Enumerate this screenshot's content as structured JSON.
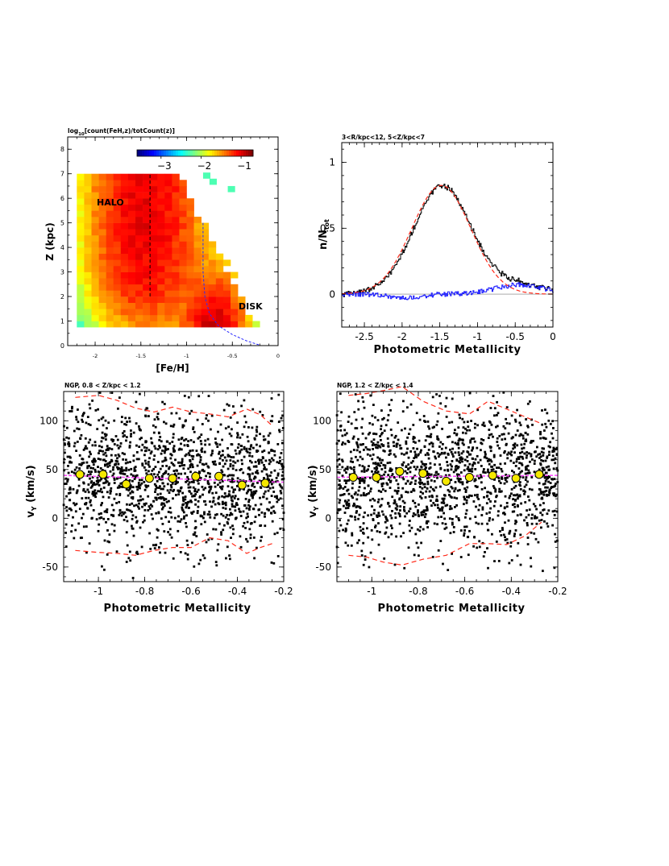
{
  "chart_data": [
    {
      "id": "heatmap",
      "type": "heatmap",
      "title": "log10[count(FeH,z)/totCount(z)]",
      "title_parts": {
        "pre": "log",
        "sub": "10",
        "post": "[count(FeH,z)/totCount(z)]"
      },
      "xlabel": "[Fe/H]",
      "ylabel": "Z (kpc)",
      "xlim": [
        -2.3,
        0
      ],
      "ylim": [
        0,
        8.5
      ],
      "xticks": [
        -2,
        -1.5,
        -1,
        -0.5,
        0
      ],
      "xtick_labels": [
        "-2",
        "-1.5",
        "-1",
        "-0.5",
        "0"
      ],
      "yticks": [
        0,
        1,
        2,
        3,
        4,
        5,
        6,
        7,
        8
      ],
      "ytick_labels": [
        "0",
        "1",
        "2",
        "3",
        "4",
        "5",
        "6",
        "7",
        "8"
      ],
      "colorbar": {
        "range": [
          -3.6,
          -0.7
        ],
        "ticks": [
          -3,
          -2,
          -1
        ],
        "tick_labels": [
          "−3",
          "−2",
          "−1"
        ]
      },
      "annotations": [
        {
          "text": "HALO",
          "x": -2.0,
          "y": 6.0
        },
        {
          "text": "DISK",
          "x": -0.35,
          "y": 1.5
        }
      ],
      "halo_line": {
        "x": -1.4,
        "y": [
          2.0,
          7.0
        ]
      },
      "disk_curve": {
        "x": [
          -0.82,
          -0.82,
          -0.8,
          -0.75,
          -0.65,
          -0.5,
          -0.35,
          -0.2
        ],
        "y": [
          5.0,
          3.0,
          2.0,
          1.3,
          0.8,
          0.45,
          0.2,
          0.02
        ]
      }
    },
    {
      "id": "histogram",
      "type": "line",
      "title": "3<R/kpc<12, 5<Z/kpc<7",
      "xlabel": "Photometric Metallicity",
      "ylabel": "n/N",
      "ylabel_sub": "tot",
      "xlim": [
        -2.8,
        0
      ],
      "ylim": [
        -0.25,
        1.15
      ],
      "xticks": [
        -2.5,
        -2,
        -1.5,
        -1,
        -0.5,
        0
      ],
      "xtick_labels": [
        "-2.5",
        "-2",
        "-1.5",
        "-1",
        "-0.5",
        "0"
      ],
      "yticks": [
        0,
        0.5,
        1
      ],
      "ytick_labels": [
        "0",
        "0.5",
        "1"
      ],
      "series": [
        {
          "name": "data",
          "color": "#000000",
          "model": "two-gaussian",
          "peak_x": -1.48,
          "peak_y": 0.84
        },
        {
          "name": "halo fit",
          "color": "#ff2a1a",
          "dash": true,
          "mu": -1.48,
          "sigma": 0.39,
          "amp": 0.825
        },
        {
          "name": "residual",
          "color": "#1a1aff",
          "mu": -0.45,
          "sigma": 0.32,
          "amp": 0.07
        }
      ]
    },
    {
      "id": "vy1",
      "type": "scatter",
      "title": "NGP, 0.8 < Z/kpc < 1.2",
      "xlabel": "Photometric Metallicity",
      "ylabel": "v",
      "ylabel_sub": "Y",
      "ylabel_post": " (km/s)",
      "xlim": [
        -1.15,
        -0.2
      ],
      "ylim": [
        -65,
        130
      ],
      "xticks": [
        -1,
        -0.8,
        -0.6,
        -0.4,
        -0.2
      ],
      "xtick_labels": [
        "-1",
        "-0.8",
        "-0.6",
        "-0.4",
        "-0.2"
      ],
      "yticks": [
        -50,
        0,
        50,
        100
      ],
      "ytick_labels": [
        "-50",
        "0",
        "50",
        "100"
      ],
      "mean_line": {
        "color": "#ff40ff",
        "y_start": 44,
        "y_end": 37
      },
      "bins": {
        "x": [
          -1.08,
          -0.98,
          -0.88,
          -0.78,
          -0.68,
          -0.58,
          -0.48,
          -0.38,
          -0.28
        ],
        "mean": [
          45,
          45,
          35,
          41,
          41,
          43,
          43,
          34,
          36
        ]
      },
      "upper_envelope": [
        124,
        126,
        121,
        113,
        109,
        114,
        109,
        107,
        104,
        112,
        106,
        95
      ],
      "lower_envelope": [
        -33,
        -35,
        -36,
        -38,
        -33,
        -30,
        -30,
        -20,
        -23,
        -36,
        -30,
        -26
      ],
      "envelope_x": [
        -1.1,
        -1.0,
        -0.92,
        -0.84,
        -0.76,
        -0.68,
        -0.6,
        -0.52,
        -0.44,
        -0.36,
        -0.3,
        -0.25
      ]
    },
    {
      "id": "vy2",
      "type": "scatter",
      "title": "NGP, 1.2 < Z/kpc < 1.4",
      "xlabel": "Photometric Metallicity",
      "ylabel": "v",
      "ylabel_sub": "Y",
      "ylabel_post": " (km/s)",
      "xlim": [
        -1.15,
        -0.2
      ],
      "ylim": [
        -65,
        130
      ],
      "xticks": [
        -1,
        -0.8,
        -0.6,
        -0.4,
        -0.2
      ],
      "xtick_labels": [
        "-1",
        "-0.8",
        "-0.6",
        "-0.4",
        "-0.2"
      ],
      "yticks": [
        -50,
        0,
        50,
        100
      ],
      "ytick_labels": [
        "-50",
        "0",
        "50",
        "100"
      ],
      "mean_line": {
        "color": "#ff40ff",
        "y_start": 42,
        "y_end": 44
      },
      "bins": {
        "x": [
          -1.08,
          -0.98,
          -0.88,
          -0.78,
          -0.68,
          -0.58,
          -0.48,
          -0.38,
          -0.28
        ],
        "mean": [
          42,
          42,
          48,
          46,
          38,
          42,
          44,
          41,
          45
        ]
      },
      "upper_envelope": [
        126,
        128,
        131,
        135,
        120,
        110,
        107,
        120,
        112,
        104,
        97
      ],
      "lower_envelope": [
        -38,
        -40,
        -45,
        -48,
        -42,
        -38,
        -26,
        -26,
        -27,
        -18,
        -4
      ],
      "envelope_x": [
        -1.1,
        -1.02,
        -0.95,
        -0.87,
        -0.78,
        -0.68,
        -0.58,
        -0.5,
        -0.42,
        -0.34,
        -0.27
      ]
    }
  ]
}
